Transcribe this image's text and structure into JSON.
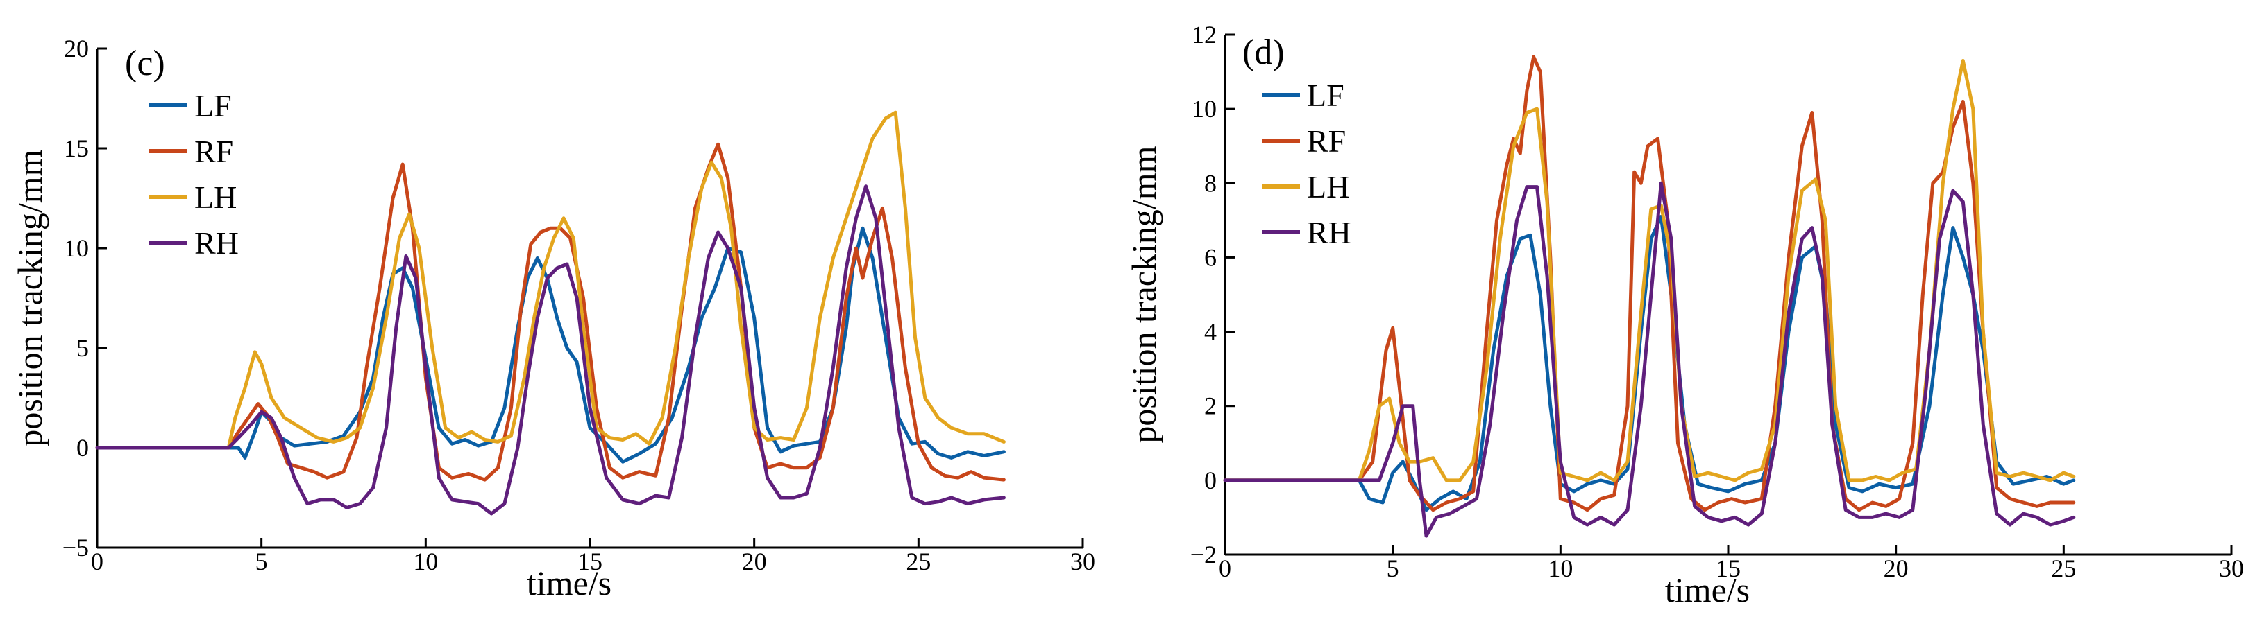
{
  "colors": {
    "LF": "#0b5fa5",
    "RF": "#c8461a",
    "LH": "#e3a51e",
    "RH": "#5f1f7c"
  },
  "chart_data": [
    {
      "type": "line",
      "panel": "(c)",
      "xlabel": "time/s",
      "ylabel": "position tracking/mm",
      "xlim": [
        0,
        30
      ],
      "ylim": [
        -5,
        20
      ],
      "xticks": [
        0,
        5,
        10,
        15,
        20,
        25,
        30
      ],
      "yticks": [
        -5,
        0,
        5,
        10,
        15,
        20
      ],
      "legend": "top-left",
      "series": [
        {
          "name": "LF",
          "color_key": "LF",
          "x": [
            0,
            4.0,
            4.3,
            4.5,
            4.8,
            5.0,
            5.3,
            5.6,
            6.0,
            6.5,
            7.0,
            7.5,
            8.0,
            8.4,
            8.7,
            9.0,
            9.3,
            9.6,
            10.0,
            10.4,
            10.8,
            11.2,
            11.6,
            12.0,
            12.4,
            12.8,
            13.1,
            13.4,
            13.7,
            14.0,
            14.3,
            14.6,
            15.0,
            15.5,
            16.0,
            16.5,
            17.0,
            17.5,
            18.0,
            18.4,
            18.8,
            19.2,
            19.6,
            20.0,
            20.4,
            20.8,
            21.2,
            21.6,
            22.0,
            22.4,
            22.8,
            23.0,
            23.3,
            23.6,
            24.0,
            24.4,
            24.8,
            25.2,
            25.6,
            26.0,
            26.5,
            27.0,
            27.6
          ],
          "y": [
            0,
            0,
            0,
            -0.5,
            0.8,
            1.8,
            1.3,
            0.5,
            0.1,
            0.2,
            0.3,
            0.6,
            1.8,
            3.5,
            6.5,
            8.7,
            9.0,
            8.0,
            4.5,
            1.0,
            0.2,
            0.4,
            0.1,
            0.3,
            2.0,
            6.0,
            8.5,
            9.5,
            8.5,
            6.5,
            5.0,
            4.3,
            1.0,
            0.2,
            -0.7,
            -0.3,
            0.2,
            1.5,
            4.0,
            6.5,
            8.0,
            10.0,
            9.8,
            6.5,
            1.0,
            -0.2,
            0.1,
            0.2,
            0.3,
            2.0,
            6.0,
            9.0,
            11.0,
            9.5,
            5.5,
            1.5,
            0.2,
            0.3,
            -0.3,
            -0.5,
            -0.2,
            -0.4,
            -0.2
          ]
        },
        {
          "name": "RF",
          "color_key": "RF",
          "x": [
            0,
            4.0,
            4.3,
            4.6,
            4.9,
            5.2,
            5.5,
            5.8,
            6.2,
            6.6,
            7.0,
            7.5,
            7.9,
            8.2,
            8.6,
            9.0,
            9.3,
            9.6,
            10.0,
            10.4,
            10.8,
            11.3,
            11.8,
            12.2,
            12.6,
            12.9,
            13.2,
            13.5,
            13.8,
            14.1,
            14.4,
            14.8,
            15.2,
            15.6,
            16.0,
            16.5,
            17.0,
            17.4,
            17.8,
            18.2,
            18.6,
            18.9,
            19.2,
            19.6,
            20.0,
            20.4,
            20.8,
            21.2,
            21.6,
            22.0,
            22.4,
            22.8,
            23.1,
            23.3,
            23.6,
            23.9,
            24.2,
            24.6,
            25.0,
            25.4,
            25.8,
            26.2,
            26.6,
            27.0,
            27.6
          ],
          "y": [
            0,
            0,
            0.8,
            1.5,
            2.2,
            1.6,
            0.5,
            -0.8,
            -1.0,
            -1.2,
            -1.5,
            -1.2,
            0.5,
            4.0,
            8.0,
            12.5,
            14.2,
            11.0,
            3.5,
            -1.0,
            -1.5,
            -1.3,
            -1.6,
            -1.0,
            2.0,
            7.0,
            10.2,
            10.8,
            11.0,
            11.0,
            10.5,
            7.5,
            2.0,
            -1.0,
            -1.5,
            -1.2,
            -1.4,
            1.5,
            7.0,
            12.0,
            14.0,
            15.2,
            13.5,
            8.0,
            1.0,
            -1.0,
            -0.8,
            -1.0,
            -1.0,
            -0.5,
            2.0,
            7.5,
            10.0,
            8.5,
            10.5,
            12.0,
            9.5,
            4.0,
            0.2,
            -1.0,
            -1.4,
            -1.5,
            -1.2,
            -1.5,
            -1.6
          ]
        },
        {
          "name": "LH",
          "color_key": "LH",
          "x": [
            0,
            4.0,
            4.2,
            4.5,
            4.8,
            5.0,
            5.3,
            5.7,
            6.2,
            6.7,
            7.2,
            7.6,
            8.0,
            8.4,
            8.8,
            9.2,
            9.5,
            9.8,
            10.2,
            10.6,
            11.0,
            11.4,
            11.8,
            12.2,
            12.6,
            13.0,
            13.3,
            13.6,
            13.9,
            14.2,
            14.5,
            14.8,
            15.2,
            15.6,
            16.0,
            16.4,
            16.8,
            17.2,
            17.6,
            18.0,
            18.4,
            18.7,
            19.0,
            19.3,
            19.6,
            20.0,
            20.4,
            20.8,
            21.2,
            21.6,
            22.0,
            22.4,
            22.8,
            23.2,
            23.6,
            24.0,
            24.3,
            24.6,
            24.9,
            25.2,
            25.6,
            26.0,
            26.5,
            27.0,
            27.6
          ],
          "y": [
            0,
            0,
            1.5,
            3.0,
            4.8,
            4.2,
            2.5,
            1.5,
            1.0,
            0.5,
            0.3,
            0.5,
            1.0,
            3.0,
            6.5,
            10.5,
            11.7,
            10.0,
            5.0,
            1.0,
            0.5,
            0.8,
            0.4,
            0.3,
            0.6,
            3.5,
            6.5,
            9.0,
            10.5,
            11.5,
            10.5,
            6.0,
            1.0,
            0.5,
            0.4,
            0.7,
            0.2,
            1.5,
            5.0,
            9.5,
            13.0,
            14.3,
            13.5,
            11.0,
            6.0,
            1.0,
            0.4,
            0.5,
            0.4,
            2.0,
            6.5,
            9.5,
            11.5,
            13.5,
            15.5,
            16.5,
            16.8,
            12.0,
            5.5,
            2.5,
            1.5,
            1.0,
            0.7,
            0.7,
            0.3
          ]
        },
        {
          "name": "RH",
          "color_key": "RH",
          "x": [
            0,
            4.0,
            4.3,
            4.7,
            5.0,
            5.3,
            5.6,
            6.0,
            6.4,
            6.8,
            7.2,
            7.6,
            8.0,
            8.4,
            8.8,
            9.1,
            9.4,
            9.7,
            10.0,
            10.4,
            10.8,
            11.2,
            11.6,
            12.0,
            12.4,
            12.8,
            13.1,
            13.4,
            13.7,
            14.0,
            14.3,
            14.6,
            15.0,
            15.5,
            16.0,
            16.5,
            17.0,
            17.4,
            17.8,
            18.2,
            18.6,
            18.9,
            19.2,
            19.6,
            20.0,
            20.4,
            20.8,
            21.2,
            21.6,
            22.0,
            22.4,
            22.8,
            23.1,
            23.4,
            23.7,
            24.0,
            24.4,
            24.8,
            25.2,
            25.6,
            26.0,
            26.5,
            27.0,
            27.6
          ],
          "y": [
            0,
            0,
            0.5,
            1.2,
            1.8,
            1.5,
            0.5,
            -1.5,
            -2.8,
            -2.6,
            -2.6,
            -3.0,
            -2.8,
            -2.0,
            1.0,
            6.0,
            9.6,
            8.5,
            4.0,
            -1.5,
            -2.6,
            -2.7,
            -2.8,
            -3.3,
            -2.8,
            0.0,
            3.5,
            6.5,
            8.5,
            9.0,
            9.2,
            7.5,
            2.0,
            -1.5,
            -2.6,
            -2.8,
            -2.4,
            -2.5,
            0.5,
            5.5,
            9.5,
            10.8,
            10.0,
            8.0,
            2.0,
            -1.5,
            -2.5,
            -2.5,
            -2.3,
            0.0,
            4.0,
            9.0,
            11.5,
            13.1,
            11.5,
            7.0,
            1.0,
            -2.5,
            -2.8,
            -2.7,
            -2.5,
            -2.8,
            -2.6,
            -2.5
          ]
        }
      ]
    },
    {
      "type": "line",
      "panel": "(d)",
      "xlabel": "time/s",
      "ylabel": "position tracking/mm",
      "xlim": [
        0,
        30
      ],
      "ylim": [
        -2,
        12
      ],
      "xticks": [
        0,
        5,
        10,
        15,
        20,
        25,
        30
      ],
      "yticks": [
        -2,
        0,
        2,
        4,
        6,
        8,
        10,
        12
      ],
      "legend": "top-left",
      "series": [
        {
          "name": "LF",
          "color_key": "LF",
          "x": [
            0,
            4.0,
            4.3,
            4.7,
            5.0,
            5.3,
            5.6,
            6.0,
            6.4,
            6.8,
            7.2,
            7.6,
            8.0,
            8.4,
            8.8,
            9.1,
            9.4,
            9.7,
            10.0,
            10.4,
            10.8,
            11.2,
            11.6,
            12.0,
            12.4,
            12.7,
            13.0,
            13.3,
            13.7,
            14.1,
            14.5,
            15.0,
            15.5,
            16.0,
            16.4,
            16.8,
            17.2,
            17.6,
            17.9,
            18.2,
            18.6,
            19.0,
            19.5,
            20.0,
            20.5,
            21.0,
            21.4,
            21.7,
            22.0,
            22.3,
            22.6,
            23.0,
            23.5,
            24.0,
            24.5,
            25.0,
            25.3
          ],
          "y": [
            0,
            0,
            -0.5,
            -0.6,
            0.2,
            0.5,
            0.0,
            -0.8,
            -0.5,
            -0.3,
            -0.5,
            0.5,
            3.5,
            5.5,
            6.5,
            6.6,
            5.0,
            2.0,
            -0.1,
            -0.3,
            -0.1,
            0.0,
            -0.1,
            0.3,
            4.0,
            6.5,
            7.1,
            5.0,
            1.5,
            -0.1,
            -0.2,
            -0.3,
            -0.1,
            0.0,
            1.0,
            4.0,
            6.0,
            6.3,
            5.0,
            1.5,
            -0.2,
            -0.3,
            -0.1,
            -0.2,
            -0.1,
            2.0,
            5.0,
            6.8,
            6.0,
            5.0,
            3.5,
            0.5,
            -0.1,
            0.0,
            0.1,
            -0.1,
            0.0
          ]
        },
        {
          "name": "RF",
          "color_key": "RF",
          "x": [
            0,
            4.0,
            4.4,
            4.8,
            5.0,
            5.2,
            5.5,
            5.8,
            6.2,
            6.6,
            7.0,
            7.4,
            7.8,
            8.1,
            8.4,
            8.6,
            8.8,
            9.0,
            9.2,
            9.4,
            9.7,
            10.0,
            10.4,
            10.8,
            11.2,
            11.6,
            12.0,
            12.2,
            12.4,
            12.6,
            12.9,
            13.2,
            13.5,
            13.9,
            14.3,
            14.7,
            15.1,
            15.5,
            16.0,
            16.4,
            16.8,
            17.2,
            17.5,
            17.8,
            18.1,
            18.5,
            18.9,
            19.3,
            19.7,
            20.1,
            20.5,
            20.8,
            21.1,
            21.4,
            21.7,
            22.0,
            22.3,
            22.6,
            23.0,
            23.4,
            23.8,
            24.2,
            24.6,
            25.0,
            25.3
          ],
          "y": [
            0,
            0,
            0.5,
            3.5,
            4.1,
            2.5,
            0.0,
            -0.4,
            -0.8,
            -0.6,
            -0.5,
            -0.3,
            4.0,
            7.0,
            8.5,
            9.2,
            8.8,
            10.5,
            11.4,
            11.0,
            6.0,
            -0.5,
            -0.6,
            -0.8,
            -0.5,
            -0.4,
            2.0,
            8.3,
            8.0,
            9.0,
            9.2,
            7.0,
            1.0,
            -0.5,
            -0.8,
            -0.6,
            -0.5,
            -0.6,
            -0.5,
            2.0,
            6.0,
            9.0,
            9.9,
            7.0,
            1.5,
            -0.5,
            -0.8,
            -0.6,
            -0.7,
            -0.5,
            1.0,
            5.0,
            8.0,
            8.3,
            9.5,
            10.2,
            8.0,
            4.0,
            -0.2,
            -0.5,
            -0.6,
            -0.7,
            -0.6,
            -0.6,
            -0.6
          ]
        },
        {
          "name": "LH",
          "color_key": "LH",
          "x": [
            0,
            4.0,
            4.3,
            4.6,
            4.9,
            5.2,
            5.5,
            5.8,
            6.2,
            6.6,
            7.0,
            7.4,
            7.8,
            8.2,
            8.6,
            9.0,
            9.3,
            9.6,
            10.0,
            10.4,
            10.8,
            11.2,
            11.6,
            12.0,
            12.4,
            12.7,
            13.0,
            13.3,
            13.6,
            14.0,
            14.4,
            14.8,
            15.2,
            15.6,
            16.0,
            16.4,
            16.8,
            17.2,
            17.6,
            17.9,
            18.2,
            18.6,
            19.0,
            19.4,
            19.8,
            20.2,
            20.6,
            21.0,
            21.4,
            21.7,
            22.0,
            22.3,
            22.6,
            23.0,
            23.4,
            23.8,
            24.2,
            24.6,
            25.0,
            25.3
          ],
          "y": [
            0,
            0,
            0.8,
            2.0,
            2.2,
            1.0,
            0.5,
            0.5,
            0.6,
            0.0,
            0.0,
            0.5,
            3.0,
            6.5,
            9.0,
            9.9,
            10.0,
            7.5,
            0.2,
            0.1,
            0.0,
            0.2,
            0.0,
            0.5,
            4.5,
            7.3,
            7.4,
            6.0,
            2.0,
            0.1,
            0.2,
            0.1,
            0.0,
            0.2,
            0.3,
            1.5,
            5.5,
            7.8,
            8.1,
            7.0,
            2.0,
            0.0,
            0.0,
            0.1,
            0.0,
            0.2,
            0.3,
            3.5,
            8.0,
            10.0,
            11.3,
            10.0,
            4.0,
            0.2,
            0.1,
            0.2,
            0.1,
            0.0,
            0.2,
            0.1
          ]
        },
        {
          "name": "RH",
          "color_key": "RH",
          "x": [
            0,
            4.0,
            4.6,
            5.0,
            5.3,
            5.6,
            5.8,
            6.0,
            6.3,
            6.7,
            7.1,
            7.5,
            7.9,
            8.3,
            8.7,
            9.0,
            9.3,
            9.6,
            10.0,
            10.4,
            10.8,
            11.2,
            11.6,
            12.0,
            12.4,
            12.8,
            13.0,
            13.3,
            13.6,
            14.0,
            14.4,
            14.8,
            15.2,
            15.6,
            16.0,
            16.4,
            16.8,
            17.2,
            17.5,
            17.8,
            18.1,
            18.5,
            18.9,
            19.3,
            19.7,
            20.1,
            20.5,
            20.9,
            21.3,
            21.7,
            22.0,
            22.3,
            22.6,
            23.0,
            23.4,
            23.8,
            24.2,
            24.6,
            25.0,
            25.3
          ],
          "y": [
            0,
            0,
            0.0,
            1.0,
            2.0,
            2.0,
            0.0,
            -1.5,
            -1.0,
            -0.9,
            -0.7,
            -0.5,
            1.5,
            4.5,
            7.0,
            7.9,
            7.9,
            5.5,
            0.5,
            -1.0,
            -1.2,
            -1.0,
            -1.2,
            -0.8,
            2.0,
            6.0,
            8.0,
            6.5,
            2.0,
            -0.7,
            -1.0,
            -1.1,
            -1.0,
            -1.2,
            -0.9,
            1.0,
            4.5,
            6.5,
            6.8,
            5.5,
            1.5,
            -0.8,
            -1.0,
            -1.0,
            -0.9,
            -1.0,
            -0.8,
            2.5,
            6.5,
            7.8,
            7.5,
            5.0,
            1.5,
            -0.9,
            -1.2,
            -0.9,
            -1.0,
            -1.2,
            -1.1,
            -1.0
          ]
        }
      ]
    }
  ]
}
